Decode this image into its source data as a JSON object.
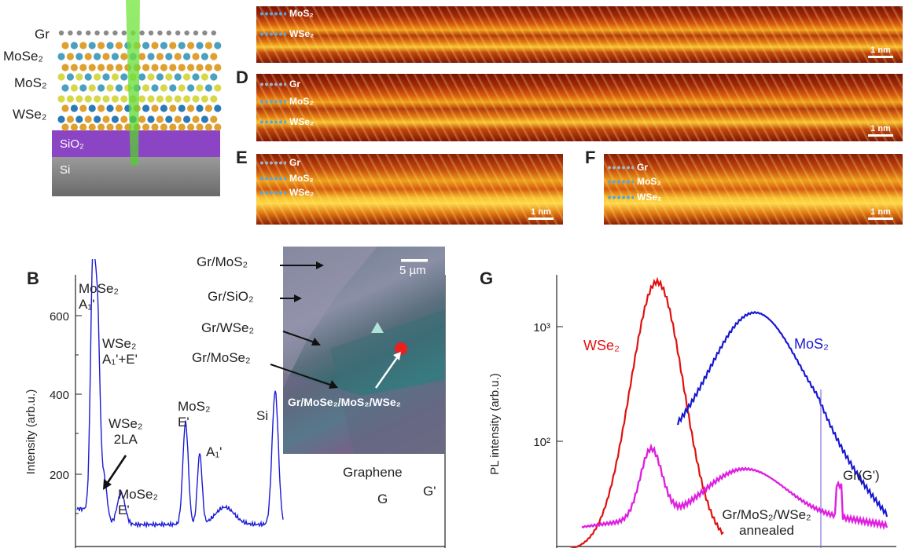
{
  "panelA": {
    "layers": [
      "Gr",
      "MoSe₂",
      "MoS₂",
      "WSe₂"
    ],
    "substrate": [
      "SiO₂",
      "Si"
    ]
  },
  "panelC": {
    "layers": [
      "MoS₂",
      "WSe₂"
    ],
    "scale": "1 nm"
  },
  "panelD": {
    "letter": "D",
    "layers": [
      "Gr",
      "MoS₂",
      "WSe₂"
    ],
    "scale": "1 nm"
  },
  "panelE": {
    "letter": "E",
    "layers": [
      "Gr",
      "MoS₂",
      "WSe₂"
    ],
    "scale": "1 nm"
  },
  "panelF": {
    "letter": "F",
    "layers": [
      "Gr",
      "MoS₂",
      "WSe₂"
    ],
    "scale": "1 nm"
  },
  "panelB": {
    "letter": "B",
    "ylabel": "Intensity (arb.u.)",
    "yticks": [
      "200",
      "400",
      "600"
    ],
    "peaks": {
      "mose2_a1": "MoSe₂",
      "mose2_a1_sub": "A₁'",
      "wse2_a1e": "WSe₂",
      "wse2_a1e_sub": "A₁'+E'",
      "wse2_2la": "WSe₂",
      "wse2_2la_sub": "2LA",
      "mose2_e": "MoSe₂",
      "mose2_e_sub": "E'",
      "mos2_e": "MoS₂",
      "mos2_e_sub": "E'",
      "mos2_a1": "A₁'",
      "si": "Si",
      "graphene": "Graphene",
      "g": "G",
      "gprime": "G'"
    },
    "inset": {
      "labels": [
        "Gr/MoS₂",
        "Gr/SiO₂",
        "Gr/WSe₂",
        "Gr/MoSe₂"
      ],
      "spot_label": "Gr/MoSe₂/MoS₂/WSe₂",
      "scale": "5 µm"
    }
  },
  "panelG": {
    "letter": "G",
    "ylabel": "PL intensity (arb.u.)",
    "yticks": [
      "10³",
      "10²"
    ],
    "series_labels": {
      "wse2": "WSe₂",
      "mos2": "MoS₂",
      "grg": "Gr(G')"
    },
    "annot_line1": "Gr/MoS₂/WSe₂",
    "annot_line2": "annealed"
  },
  "colors": {
    "raman": "#1a1ad6",
    "wse2": "#e01010",
    "mos2": "#1818d0",
    "hetero": "#e020e0",
    "purple": "#8a44c4"
  }
}
